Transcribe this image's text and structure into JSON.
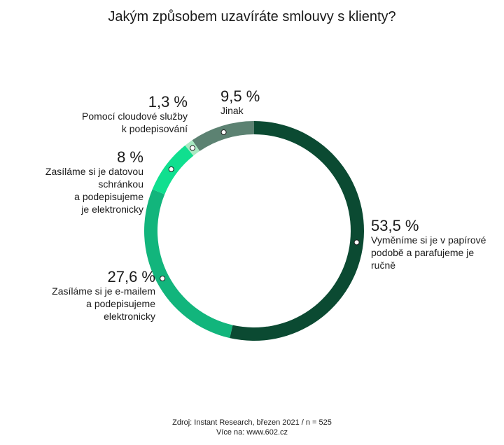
{
  "chart_data": {
    "type": "donut",
    "title": "Jakým způsobem uzavíráte smlouvy s klienty?",
    "categories": [
      "Vyměníme si je v papírové\npodobě a parafujeme je\nručně",
      "Zasíláme si je e-mailem\na podepisujeme\nelektronicky",
      "Zasíláme si je datovou\nschránkou\na podepisujeme\nje elektronicky",
      "Pomocí cloudové služby\nk podepisování",
      "Jinak"
    ],
    "values": [
      53.5,
      27.6,
      8,
      1.3,
      9.5
    ],
    "value_labels": [
      "53,5 %",
      "27,6 %",
      "8 %",
      "1,3 %",
      "9,5 %"
    ],
    "colors": [
      "#0b4a32",
      "#12b57c",
      "#10df8f",
      "#a9e9c2",
      "#5c8272"
    ],
    "source": [
      "Zdroj: Instant Research, březen 2021 / n = 525",
      "Více na: www.602.cz"
    ]
  }
}
